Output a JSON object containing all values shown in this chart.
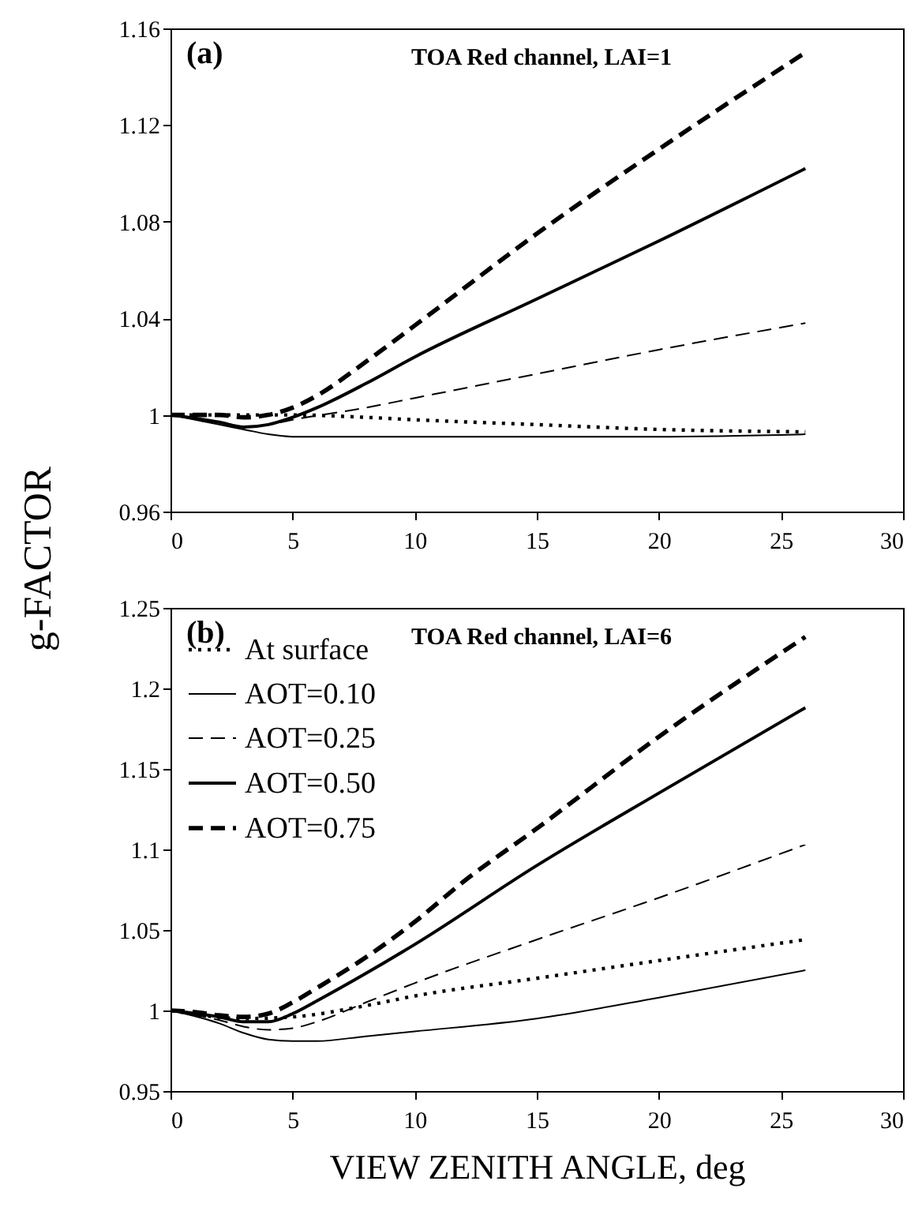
{
  "chart_data": [
    {
      "type": "line",
      "title": "TOA Red channel, LAI=1",
      "ylabel": "g-FACTOR",
      "annotations": [
        "(a)"
      ],
      "xlim": [
        0,
        30
      ],
      "xticks": [
        0,
        5,
        10,
        15,
        20,
        25,
        30
      ],
      "ylim": [
        0.96,
        1.16
      ],
      "yticks": [
        0.96,
        1,
        1.04,
        1.08,
        1.12,
        1.16
      ],
      "grid": false,
      "legend": false,
      "series": [
        {
          "color": "#000000",
          "line_style": "dotted",
          "x": [
            0,
            3,
            5,
            8,
            10,
            15,
            20,
            26
          ],
          "values": [
            1,
            1.0,
            1.0,
            0.999,
            0.998,
            0.996,
            0.994,
            0.993
          ]
        },
        {
          "color": "#000000",
          "line_style": "solid",
          "x": [
            0,
            2,
            3,
            4,
            5,
            8,
            10,
            15,
            20,
            26
          ],
          "values": [
            1,
            0.996,
            0.994,
            0.992,
            0.991,
            0.991,
            0.991,
            0.991,
            0.991,
            0.992
          ]
        },
        {
          "color": "#000000",
          "line_style": "dashed",
          "x": [
            0,
            2,
            3,
            4,
            5,
            8,
            10,
            15,
            20,
            26
          ],
          "values": [
            1,
            0.997,
            0.995,
            0.996,
            0.998,
            1.003,
            1.007,
            1.017,
            1.027,
            1.038
          ]
        },
        {
          "color": "#000000",
          "line_style": "solid",
          "x": [
            0,
            2,
            3,
            4,
            5,
            6,
            8,
            10,
            15,
            20,
            26
          ],
          "values": [
            1,
            0.997,
            0.995,
            0.996,
            0.999,
            1.003,
            1.013,
            1.024,
            1.048,
            1.072,
            1.102
          ]
        },
        {
          "color": "#000000",
          "line_style": "dashed",
          "x": [
            0,
            2,
            3,
            4,
            5,
            6,
            8,
            10,
            15,
            20,
            26
          ],
          "values": [
            1,
            1.0,
            0.999,
            1.0,
            1.003,
            1.008,
            1.022,
            1.037,
            1.075,
            1.11,
            1.15
          ]
        }
      ]
    },
    {
      "type": "line",
      "title": "TOA Red channel, LAI=6",
      "xlabel": "VIEW ZENITH ANGLE, deg",
      "annotations": [
        "(b)"
      ],
      "xlim": [
        0,
        30
      ],
      "xticks": [
        0,
        5,
        10,
        15,
        20,
        25,
        30
      ],
      "ylim": [
        0.95,
        1.25
      ],
      "yticks": [
        0.95,
        1,
        1.05,
        1.1,
        1.15,
        1.2,
        1.25
      ],
      "grid": false,
      "legend": "top left",
      "series": [
        {
          "name": "At surface",
          "color": "#000000",
          "line_style": "dotted",
          "x": [
            0,
            3,
            5,
            8,
            10,
            15,
            20,
            26
          ],
          "values": [
            1,
            0.995,
            0.996,
            1.003,
            1.009,
            1.02,
            1.031,
            1.044
          ]
        },
        {
          "name": "AOT=0.10",
          "color": "#000000",
          "line_style": "solid",
          "x": [
            0,
            2,
            3,
            4,
            5,
            6,
            8,
            10,
            15,
            20,
            26
          ],
          "values": [
            1,
            0.992,
            0.986,
            0.982,
            0.981,
            0.981,
            0.984,
            0.987,
            0.995,
            1.008,
            1.025
          ]
        },
        {
          "name": "AOT=0.25",
          "color": "#000000",
          "line_style": "dashed",
          "x": [
            0,
            2,
            3,
            4,
            5,
            6,
            8,
            10,
            15,
            20,
            26
          ],
          "values": [
            1,
            0.994,
            0.99,
            0.988,
            0.989,
            0.993,
            1.005,
            1.017,
            1.044,
            1.07,
            1.103
          ]
        },
        {
          "name": "AOT=0.50",
          "color": "#000000",
          "line_style": "solid",
          "x": [
            0,
            2,
            3,
            4,
            5,
            6,
            8,
            10,
            15,
            20,
            26
          ],
          "values": [
            1,
            0.996,
            0.993,
            0.993,
            0.998,
            1.006,
            1.023,
            1.041,
            1.09,
            1.135,
            1.188
          ]
        },
        {
          "name": "AOT=0.75",
          "color": "#000000",
          "line_style": "dashed",
          "x": [
            0,
            1,
            2,
            3,
            4,
            5,
            6,
            8,
            10,
            12,
            15,
            20,
            26
          ],
          "values": [
            1,
            0.999,
            0.997,
            0.996,
            0.998,
            1.005,
            1.014,
            1.033,
            1.055,
            1.08,
            1.113,
            1.17,
            1.232
          ]
        }
      ]
    }
  ]
}
